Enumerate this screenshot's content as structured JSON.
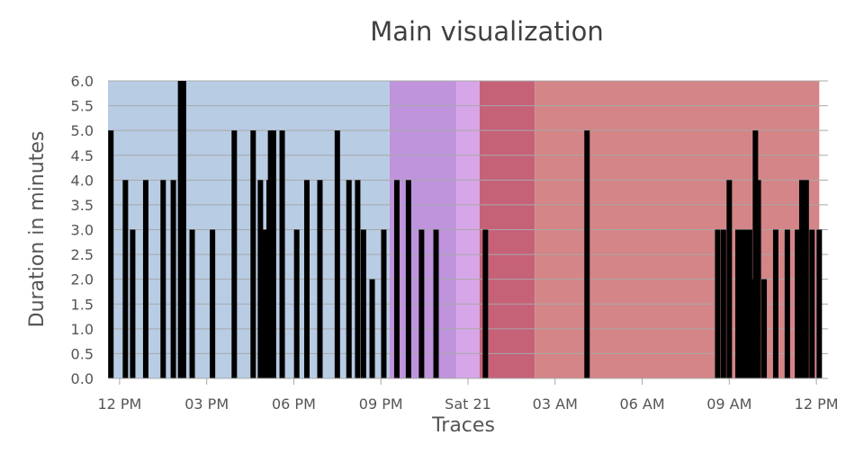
{
  "chart_data": {
    "type": "bar",
    "title": "Main visualization",
    "xlabel": "Traces",
    "ylabel": "Duration in minutes",
    "ylim": [
      0,
      6
    ],
    "y_ticks": [
      "0.0",
      "0.5",
      "1.0",
      "1.5",
      "2.0",
      "2.5",
      "3.0",
      "3.5",
      "4.0",
      "4.5",
      "5.0",
      "5.5",
      "6.0"
    ],
    "xlim_hours": [
      11.6,
      36.4
    ],
    "x_ticks": [
      {
        "label": "12 PM",
        "hour": 12
      },
      {
        "label": "03 PM",
        "hour": 15
      },
      {
        "label": "06 PM",
        "hour": 18
      },
      {
        "label": "09 PM",
        "hour": 21
      },
      {
        "label": "Sat 21",
        "hour": 24
      },
      {
        "label": "03 AM",
        "hour": 27
      },
      {
        "label": "06 AM",
        "hour": 30
      },
      {
        "label": "09 AM",
        "hour": 33
      },
      {
        "label": "12 PM",
        "hour": 36
      }
    ],
    "background_bands": [
      {
        "start": 11.6,
        "end": 21.3,
        "color": "#b8cce4"
      },
      {
        "start": 21.3,
        "end": 23.6,
        "color": "#bf94dc"
      },
      {
        "start": 23.6,
        "end": 24.4,
        "color": "#d7a6e8"
      },
      {
        "start": 24.4,
        "end": 26.3,
        "color": "#c56278"
      },
      {
        "start": 26.3,
        "end": 36.1,
        "color": "#d48587"
      }
    ],
    "bar_color": "#000000",
    "series": [
      {
        "hours": [
          11.7,
          12.2,
          12.45,
          12.9,
          13.5,
          13.85,
          14.1,
          14.2,
          14.5,
          15.2,
          15.95,
          16.6,
          16.85,
          17.0,
          17.15,
          17.2,
          17.3,
          17.6,
          18.1,
          18.45,
          18.9,
          19.5,
          19.9,
          20.2,
          20.4,
          20.7,
          21.1,
          21.55,
          21.95,
          22.4,
          22.9,
          24.6,
          28.1,
          32.6,
          32.8,
          33.0,
          33.3,
          33.45,
          33.55,
          33.7,
          33.85,
          33.9,
          34.0,
          34.2,
          34.6,
          35.0,
          35.35,
          35.5,
          35.55,
          35.65,
          35.85,
          36.1
        ],
        "values": [
          5.0,
          4.0,
          3.0,
          4.0,
          4.0,
          4.0,
          6.0,
          6.0,
          3.0,
          3.0,
          5.0,
          5.0,
          4.0,
          3.0,
          4.0,
          5.0,
          5.0,
          5.0,
          3.0,
          4.0,
          4.0,
          5.0,
          4.0,
          4.0,
          3.0,
          2.0,
          3.0,
          4.0,
          4.0,
          3.0,
          3.0,
          3.0,
          5.0,
          3.0,
          3.0,
          4.0,
          3.0,
          3.0,
          3.0,
          3.0,
          2.0,
          5.0,
          4.0,
          2.0,
          3.0,
          3.0,
          3.0,
          4.0,
          3.0,
          4.0,
          3.0,
          3.0
        ]
      }
    ]
  }
}
